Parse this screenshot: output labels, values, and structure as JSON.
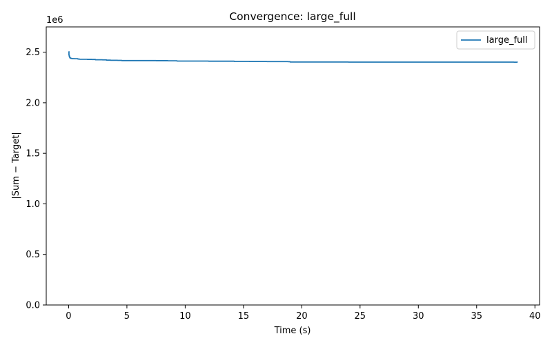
{
  "chart_data": {
    "type": "line",
    "title": "Convergence: large_full",
    "xlabel": "Time (s)",
    "ylabel": "|Sum − Target|",
    "y_offset_label": "1e6",
    "xlim": [
      -1.92,
      40.4
    ],
    "ylim": [
      0,
      2.75
    ],
    "x_ticks": [
      0,
      5,
      10,
      15,
      20,
      25,
      30,
      35,
      40
    ],
    "x_tick_labels": [
      "0",
      "5",
      "10",
      "15",
      "20",
      "25",
      "30",
      "35",
      "40"
    ],
    "y_ticks": [
      0,
      0.5,
      1.0,
      1.5,
      2.0,
      2.5
    ],
    "y_tick_labels": [
      "0.0",
      "0.5",
      "1.0",
      "1.5",
      "2.0",
      "2.5"
    ],
    "grid": false,
    "legend_position": "top-right",
    "series": [
      {
        "name": "large_full",
        "color": "#1f77b4",
        "x": [
          0,
          0.03,
          0.06,
          0.1,
          0.15,
          0.22,
          0.3,
          0.5,
          0.8,
          0.95,
          1.2,
          1.6,
          1.98,
          2.3,
          2.9,
          3.25,
          3.6,
          4.2,
          4.55,
          5.5,
          6.5,
          7.5,
          8.5,
          9.3,
          10.5,
          12,
          13.5,
          14.2,
          15.5,
          17,
          18.8,
          19.0,
          21,
          24,
          27,
          30,
          33,
          36,
          37.5,
          38,
          38.2,
          38.5
        ],
        "y": [
          2.505,
          2.47,
          2.455,
          2.445,
          2.44,
          2.438,
          2.436,
          2.435,
          2.432,
          2.43,
          2.43,
          2.429,
          2.428,
          2.425,
          2.424,
          2.421,
          2.42,
          2.419,
          2.417,
          2.417,
          2.417,
          2.416,
          2.415,
          2.412,
          2.412,
          2.411,
          2.411,
          2.409,
          2.408,
          2.407,
          2.406,
          2.403,
          2.403,
          2.402,
          2.402,
          2.402,
          2.402,
          2.402,
          2.402,
          2.402,
          2.401,
          2.4
        ]
      }
    ]
  }
}
